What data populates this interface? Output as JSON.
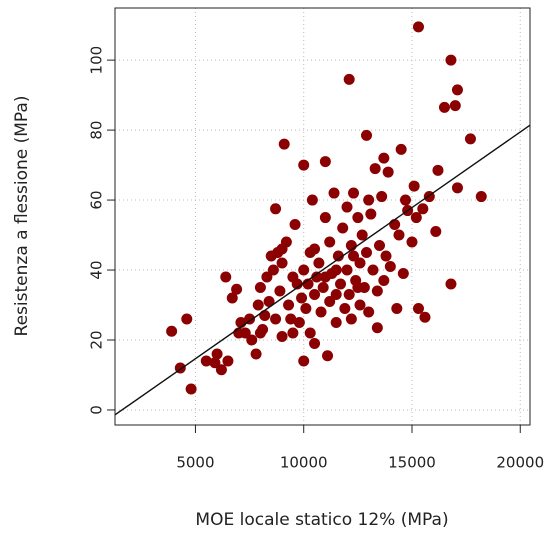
{
  "chart_data": {
    "type": "scatter",
    "xlabel": "MOE locale statico 12% (MPa)",
    "ylabel": "Resistenza a flessione (MPa)",
    "xlim": [
      1285,
      20450
    ],
    "ylim": [
      -4.3,
      114.9
    ],
    "xticks": [
      5000,
      10000,
      15000,
      20000
    ],
    "yticks": [
      0,
      20,
      40,
      60,
      80,
      100
    ],
    "grid": true,
    "color": "#8b0000",
    "x": [
      3900,
      4300,
      4600,
      4800,
      5500,
      5900,
      6000,
      6200,
      6500,
      6400,
      6700,
      6900,
      7100,
      7300,
      7500,
      7600,
      7800,
      7900,
      8000,
      8100,
      8200,
      8300,
      8400,
      8500,
      8600,
      8700,
      8700,
      8800,
      8900,
      9000,
      9000,
      9100,
      9200,
      9300,
      9400,
      9500,
      9600,
      9700,
      9800,
      9900,
      10000,
      10000,
      10000,
      10100,
      10200,
      10300,
      10300,
      10400,
      10500,
      10500,
      10600,
      10700,
      10800,
      10900,
      11000,
      11000,
      11100,
      11200,
      11200,
      11300,
      11400,
      11500,
      11500,
      11600,
      11700,
      11800,
      11900,
      12000,
      12000,
      12100,
      12100,
      12200,
      12200,
      12300,
      12400,
      12500,
      12600,
      12600,
      12700,
      12800,
      12900,
      12900,
      13000,
      13100,
      13200,
      13300,
      13400,
      13400,
      13500,
      13600,
      13700,
      13700,
      13800,
      13900,
      14000,
      14200,
      14300,
      14400,
      14500,
      14600,
      14700,
      14800,
      15000,
      15100,
      15200,
      15300,
      15300,
      15500,
      15600,
      15800,
      16100,
      16200,
      16500,
      16800,
      16800,
      17000,
      17100,
      17100,
      17700,
      18200,
      7000,
      8000,
      9500,
      11500,
      12500,
      10500,
      9000,
      11000,
      12300,
      13000
    ],
    "y": [
      22.5,
      12,
      26,
      6,
      14,
      13.5,
      16,
      11.5,
      14,
      38,
      32,
      34.5,
      25,
      22,
      26,
      20,
      16,
      30,
      35,
      23,
      27,
      38,
      31,
      44,
      40,
      57.5,
      26,
      45,
      34,
      42,
      21,
      76,
      48,
      30,
      26,
      38,
      53,
      36,
      25,
      32,
      70,
      14,
      40,
      29,
      36,
      45,
      22,
      60,
      33,
      19,
      38,
      42,
      28,
      35,
      71,
      55,
      15.5,
      48,
      31,
      39,
      62,
      33,
      25,
      44,
      36,
      52,
      29,
      58,
      40,
      94.5,
      33,
      47,
      26,
      62,
      37,
      55,
      42,
      30,
      50,
      35,
      78.5,
      45,
      28,
      56,
      40,
      69,
      23.5,
      34,
      47,
      61,
      72,
      37,
      44,
      68,
      41,
      53,
      29,
      50,
      74.5,
      39,
      60,
      57,
      48,
      64,
      55,
      29,
      109.5,
      57.5,
      26.5,
      61,
      51,
      68.5,
      86.5,
      100,
      36,
      87,
      63.5,
      91.5,
      77.5,
      61,
      22,
      22,
      22,
      40,
      35,
      46,
      46,
      38,
      44,
      60
    ],
    "fit_line": {
      "x": [
        1285,
        20450
      ],
      "y": [
        -1.4,
        81.4
      ]
    }
  }
}
